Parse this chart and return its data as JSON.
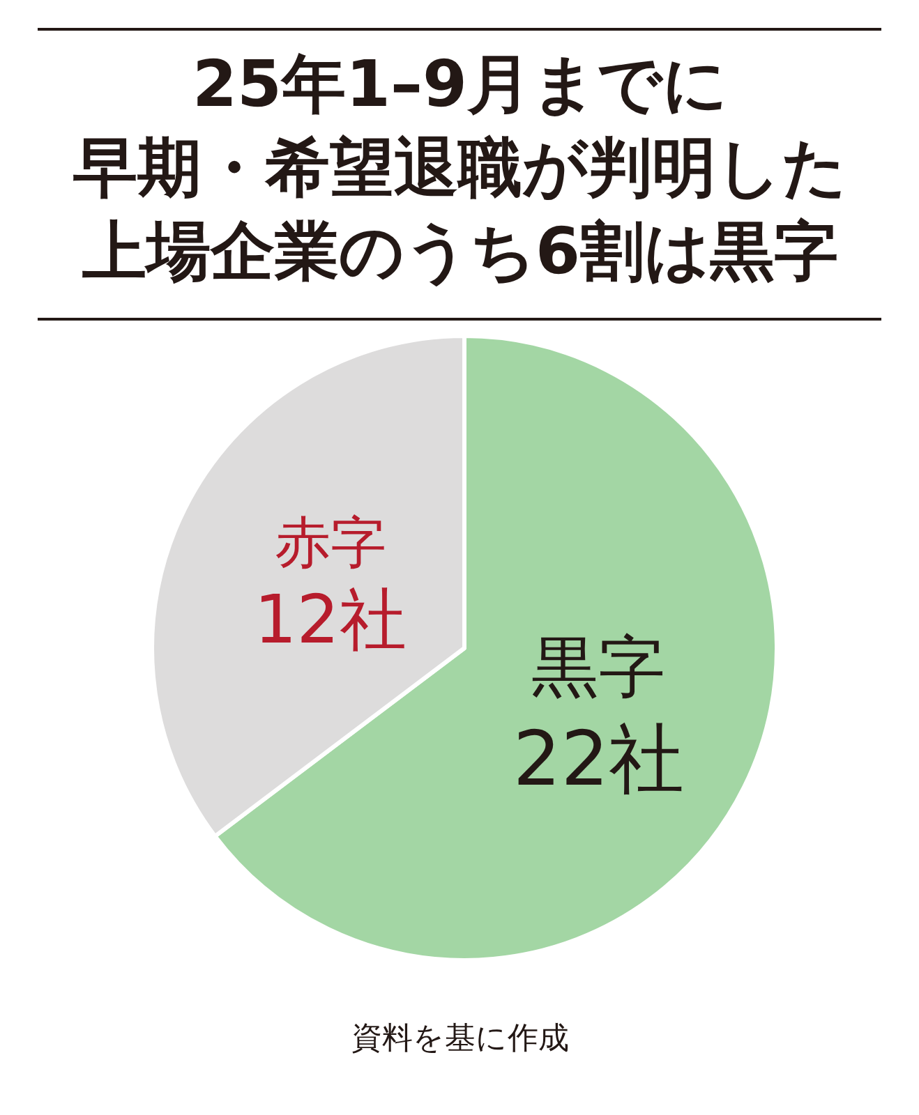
{
  "chart_data": {
    "type": "pie",
    "title": "25年1–9月までに早期・希望退職が判明した上場企業のうち6割は黒字",
    "categories": [
      "黒字",
      "赤字"
    ],
    "values": [
      22,
      12
    ],
    "value_labels": [
      "22社",
      "12社"
    ],
    "colors": [
      "#a3d6a4",
      "#dddcdc"
    ],
    "annotations": [
      "資料を基に作成"
    ]
  }
}
